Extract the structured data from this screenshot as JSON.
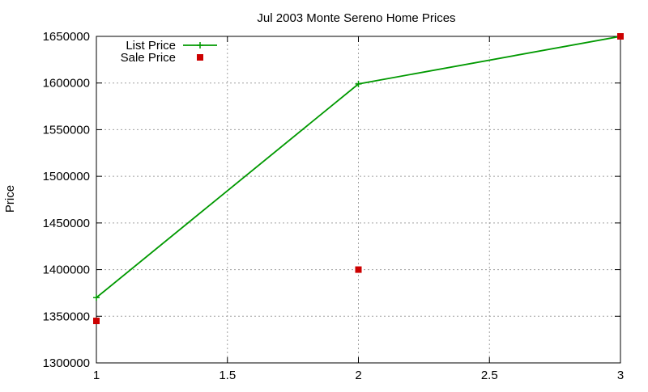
{
  "chart_data": {
    "type": "line",
    "title": "Jul 2003 Monte Sereno Home Prices",
    "xlabel": "",
    "ylabel": "Price",
    "xlim": [
      1,
      3
    ],
    "ylim": [
      1300000,
      1650000
    ],
    "x_ticks": [
      "1",
      "1.5",
      "2",
      "2.5",
      "3"
    ],
    "y_ticks": [
      "1300000",
      "1350000",
      "1400000",
      "1450000",
      "1500000",
      "1550000",
      "1600000",
      "1650000"
    ],
    "grid": true,
    "legend_position": "top-left",
    "series": [
      {
        "name": "List Price",
        "style": "line+plus",
        "color": "#009900",
        "x": [
          1,
          2,
          3
        ],
        "y": [
          1370000,
          1599000,
          1650000
        ]
      },
      {
        "name": "Sale Price",
        "style": "square-points",
        "color": "#cc0000",
        "x": [
          1,
          2,
          3
        ],
        "y": [
          1345000,
          1400000,
          1650000
        ]
      }
    ]
  }
}
